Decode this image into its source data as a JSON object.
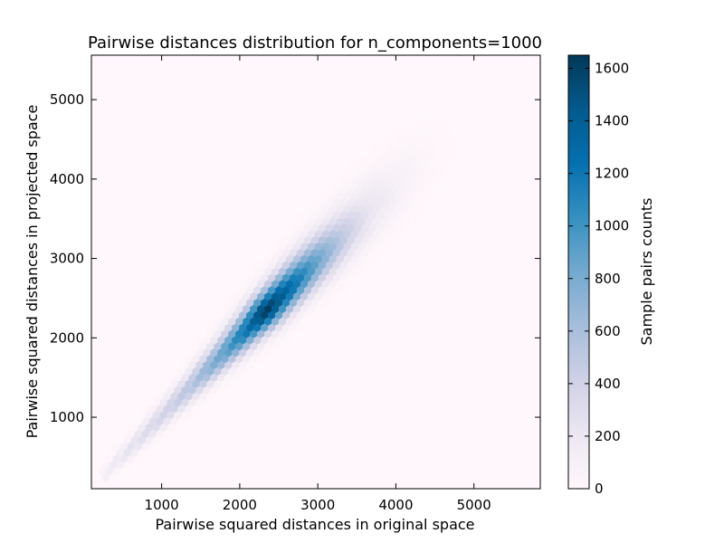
{
  "chart_data": {
    "type": "heatmap",
    "subtype": "hexbin",
    "title": "Pairwise distances distribution for n_components=1000",
    "xlabel": "Pairwise squared distances in original space",
    "ylabel": "Pairwise squared distances in projected space",
    "xlim": [
      100,
      5850
    ],
    "ylim": [
      100,
      5560
    ],
    "xticks": [
      1000,
      2000,
      3000,
      4000,
      5000
    ],
    "yticks": [
      1000,
      2000,
      3000,
      4000,
      5000
    ],
    "grid": false,
    "colormap": "PuBu",
    "colormap_stops": [
      "#fff7fb",
      "#ece7f2",
      "#d0d1e6",
      "#a6bddb",
      "#74a9cf",
      "#3690c0",
      "#0570b0",
      "#045a8d",
      "#023858"
    ],
    "background_color": "#fff7fb",
    "distribution": {
      "relation": "y ≈ x",
      "x_range": [
        250,
        4700
      ],
      "peak_x": 2330,
      "peak_count": 1650,
      "note_values_are_cell_counts": true
    },
    "density_profile": {
      "x": [
        250,
        600,
        1000,
        1400,
        1800,
        2100,
        2330,
        2600,
        3000,
        3300,
        3600,
        4000,
        4400,
        4700
      ],
      "count": [
        120,
        260,
        380,
        560,
        900,
        1250,
        1650,
        1350,
        850,
        500,
        250,
        90,
        25,
        5
      ]
    },
    "colorbar": {
      "label": "Sample pairs counts",
      "range": [
        0,
        1650
      ],
      "ticks": [
        0,
        200,
        400,
        600,
        800,
        1000,
        1200,
        1400,
        1600
      ]
    }
  }
}
